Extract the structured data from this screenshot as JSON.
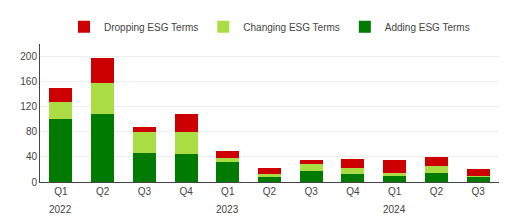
{
  "chart_data": {
    "type": "bar",
    "stacked": true,
    "categories": [
      "Q1",
      "Q2",
      "Q3",
      "Q4",
      "Q1",
      "Q2",
      "Q3",
      "Q4",
      "Q1",
      "Q2",
      "Q3"
    ],
    "series": [
      {
        "name": "Adding ESG Terms",
        "color": "#007A00",
        "values": [
          100,
          108,
          47,
          45,
          32,
          8,
          18,
          12,
          10,
          15,
          8
        ]
      },
      {
        "name": "Changing ESG Terms",
        "color": "#AADD44",
        "values": [
          28,
          50,
          33,
          35,
          7,
          5,
          10,
          10,
          5,
          10,
          2
        ]
      },
      {
        "name": "Dropping ESG Terms",
        "color": "#CC0000",
        "values": [
          22,
          40,
          8,
          28,
          10,
          10,
          7,
          15,
          20,
          15,
          10
        ]
      }
    ],
    "annotations": [
      {
        "text": "2022",
        "x": 0
      },
      {
        "text": "2023",
        "x": 4
      },
      {
        "text": "2024",
        "x": 8
      }
    ],
    "ylim": [
      0,
      220
    ],
    "yticks": [
      0,
      40,
      80,
      120,
      160,
      200
    ],
    "grid": true,
    "legend": "top"
  }
}
